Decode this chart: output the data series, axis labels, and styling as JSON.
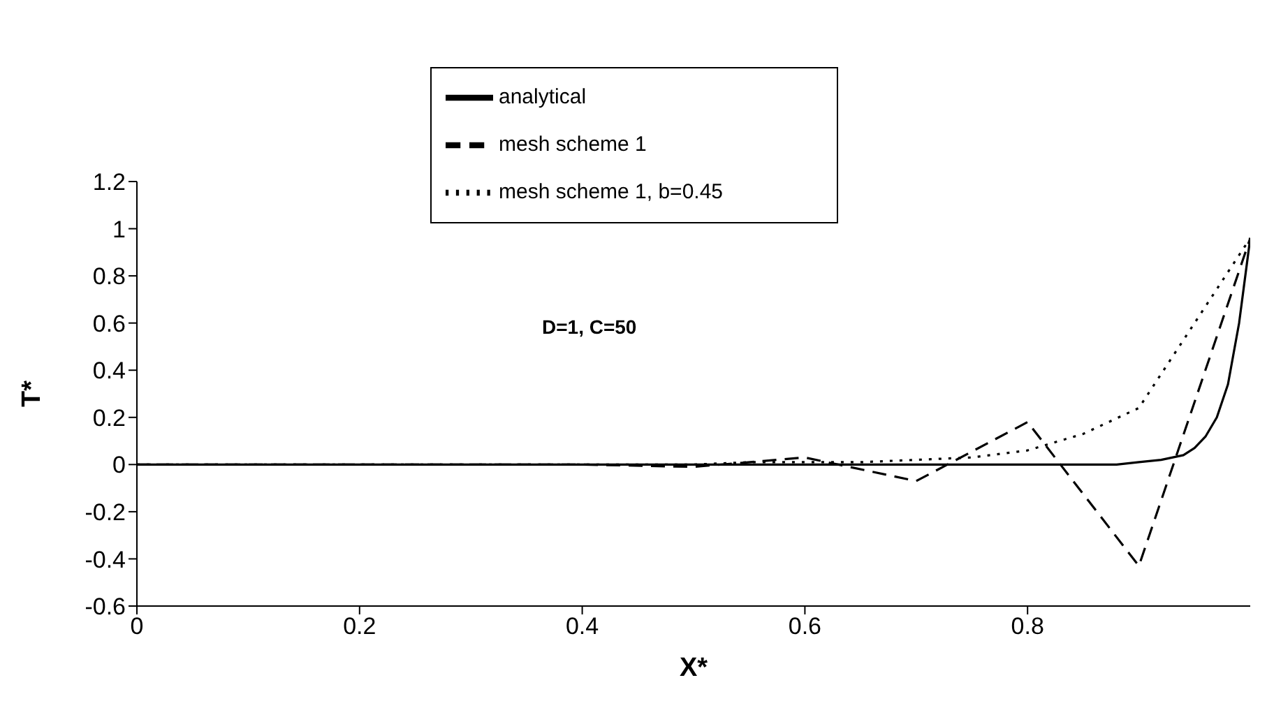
{
  "chart_data": {
    "type": "line",
    "xlabel": "X*",
    "ylabel": "T*",
    "annotations": [
      "D=1, C=50"
    ],
    "xlim": [
      0,
      1
    ],
    "xticks": [
      0,
      0.2,
      0.4,
      0.6,
      0.8
    ],
    "ylim": [
      -0.6,
      1.2
    ],
    "yticks": [
      -0.6,
      -0.4,
      -0.2,
      0,
      0.2,
      0.4,
      0.6,
      0.8,
      1,
      1.2
    ],
    "grid": false,
    "legend": "top",
    "marker": "none",
    "series": [
      {
        "name": "analytical",
        "color": "#000000",
        "line_style": "solid",
        "x": [
          0,
          0.2,
          0.4,
          0.6,
          0.8,
          0.88,
          0.9,
          0.92,
          0.94,
          0.95,
          0.96,
          0.97,
          0.98,
          0.99,
          1
        ],
        "values": [
          0,
          0,
          0,
          0,
          0,
          0,
          0.01,
          0.02,
          0.04,
          0.07,
          0.12,
          0.2,
          0.34,
          0.6,
          0.96
        ]
      },
      {
        "name": "mesh scheme 1",
        "color": "#000000",
        "line_style": "dashed",
        "x": [
          0,
          0.1,
          0.2,
          0.3,
          0.4,
          0.5,
          0.6,
          0.7,
          0.8,
          0.9,
          1
        ],
        "values": [
          0,
          0,
          0,
          0,
          0,
          -0.01,
          0.03,
          -0.07,
          0.18,
          -0.43,
          0.96
        ]
      },
      {
        "name": "mesh scheme 1, b=0.45",
        "color": "#000000",
        "line_style": "dotted",
        "x": [
          0,
          0.1,
          0.2,
          0.3,
          0.4,
          0.5,
          0.55,
          0.6,
          0.65,
          0.7,
          0.75,
          0.8,
          0.85,
          0.9,
          1
        ],
        "values": [
          0,
          0,
          0,
          0,
          0,
          0,
          0.01,
          0.01,
          0.01,
          0.02,
          0.03,
          0.06,
          0.13,
          0.24,
          0.96
        ]
      }
    ]
  }
}
